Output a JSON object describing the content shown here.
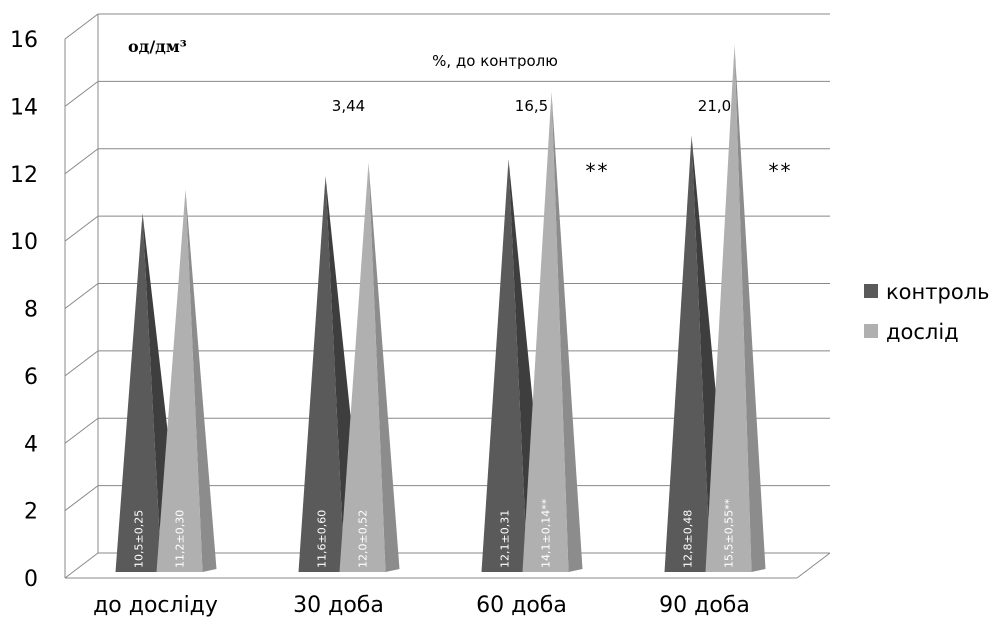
{
  "chart_data": {
    "type": "bar",
    "style": "3d-cone",
    "categories": [
      "до досліду",
      "30 доба",
      "60 доба",
      "90 доба"
    ],
    "series": [
      {
        "name": "контроль",
        "values": [
          10.5,
          11.6,
          12.1,
          12.8
        ],
        "labels": [
          "10,5±0,25",
          "11,6±0,60",
          "12,1±0,31",
          "12,8±0,48"
        ],
        "color": "#5a5a5a"
      },
      {
        "name": "дослід",
        "values": [
          11.2,
          12.0,
          14.1,
          15.5
        ],
        "labels": [
          "11,2±0,30",
          "12,0±0,52",
          "14,1±0,14**",
          "15,5±0,55**"
        ],
        "color": "#b0b0b0"
      }
    ],
    "ylim": [
      0,
      16
    ],
    "yticks": [
      0,
      2,
      4,
      6,
      8,
      10,
      12,
      14,
      16
    ],
    "grid": true,
    "legend_position": "right",
    "unit_label": "од/дм³",
    "percent_header": "%, до контролю",
    "percent_values": [
      "",
      "3,44",
      "16,5",
      "21,0"
    ],
    "significance": [
      "",
      "",
      "**",
      "**"
    ]
  }
}
